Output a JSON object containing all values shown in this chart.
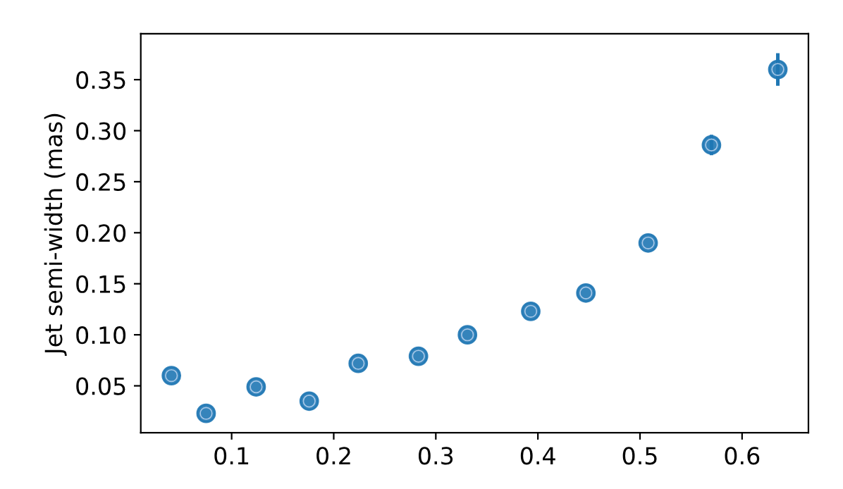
{
  "chart_data": {
    "type": "scatter",
    "ylabel": "Jet semi-width (mas)",
    "x": [
      0.041,
      0.075,
      0.124,
      0.176,
      0.224,
      0.283,
      0.331,
      0.393,
      0.447,
      0.508,
      0.57,
      0.635
    ],
    "series": [
      {
        "color": "#1f77b4",
        "values": [
          0.06,
          0.023,
          0.049,
          0.035,
          0.072,
          0.079,
          0.1,
          0.123,
          0.141,
          0.19,
          0.286,
          0.36
        ],
        "errors": [
          null,
          null,
          null,
          null,
          null,
          null,
          null,
          null,
          null,
          null,
          0.01,
          0.016
        ]
      }
    ],
    "marker": "circle",
    "xlim": [
      0.011,
      0.665
    ],
    "ylim": [
      0.004,
      0.395
    ],
    "xticks": [
      0.1,
      0.2,
      0.3,
      0.4,
      0.5,
      0.6
    ],
    "yticks": [
      0.05,
      {
        "value": 0.1,
        "label": "0.10"
      },
      0.15,
      {
        "value": 0.2,
        "label": "0.20"
      },
      0.25,
      {
        "value": 0.3,
        "label": "0.30"
      },
      0.35
    ],
    "grid": false,
    "legend": false
  }
}
